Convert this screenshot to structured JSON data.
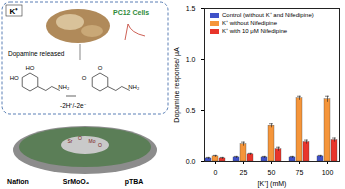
{
  "chart_data": {
    "type": "bar",
    "categories": [
      "0",
      "25",
      "50",
      "75",
      "100"
    ],
    "x_label": "[K⁺] (mM)",
    "y_label": "Dopamine response/ μA",
    "ylim": [
      0,
      1.5
    ],
    "yticks": [
      {
        "value": 0,
        "label": "0.0"
      },
      0.5,
      {
        "value": 1,
        "label": "1.0"
      },
      1.5
    ],
    "legend": "top-left",
    "series": [
      {
        "name": "Control (without K⁺ and Nifedipine)",
        "color": "#3f51c8",
        "values": [
          0.03,
          0.04,
          0.04,
          0.04,
          0.05
        ],
        "errors": [
          0.01,
          0.01,
          0.01,
          0.01,
          0.01
        ]
      },
      {
        "name": "K⁺ without Nifedipine",
        "color": "#f5953a",
        "values": [
          0.05,
          0.17,
          0.35,
          0.62,
          0.61
        ],
        "errors": [
          0.01,
          0.02,
          0.02,
          0.02,
          0.03
        ]
      },
      {
        "name": "K⁺ with 10 μM Nifedipine",
        "color": "#e8352b",
        "values": [
          0.03,
          0.07,
          0.12,
          0.19,
          0.21
        ],
        "errors": [
          0.01,
          0.01,
          0.02,
          0.02,
          0.02
        ]
      }
    ]
  },
  "diagram": {
    "ion": "K⁺",
    "cells": "PC12 Cells",
    "release": "Dopamine released",
    "reaction": "-2H⁺/-2e⁻",
    "layers": [
      "Nafion",
      "SrMoO₄",
      "pTBA"
    ],
    "dopamine_atoms": [
      "HO",
      "HO",
      "NH₂"
    ],
    "quinone_atoms": [
      "O",
      "O",
      "NH₂"
    ],
    "crystal_atoms": [
      "Sr",
      "O",
      "Mo",
      "O"
    ]
  }
}
